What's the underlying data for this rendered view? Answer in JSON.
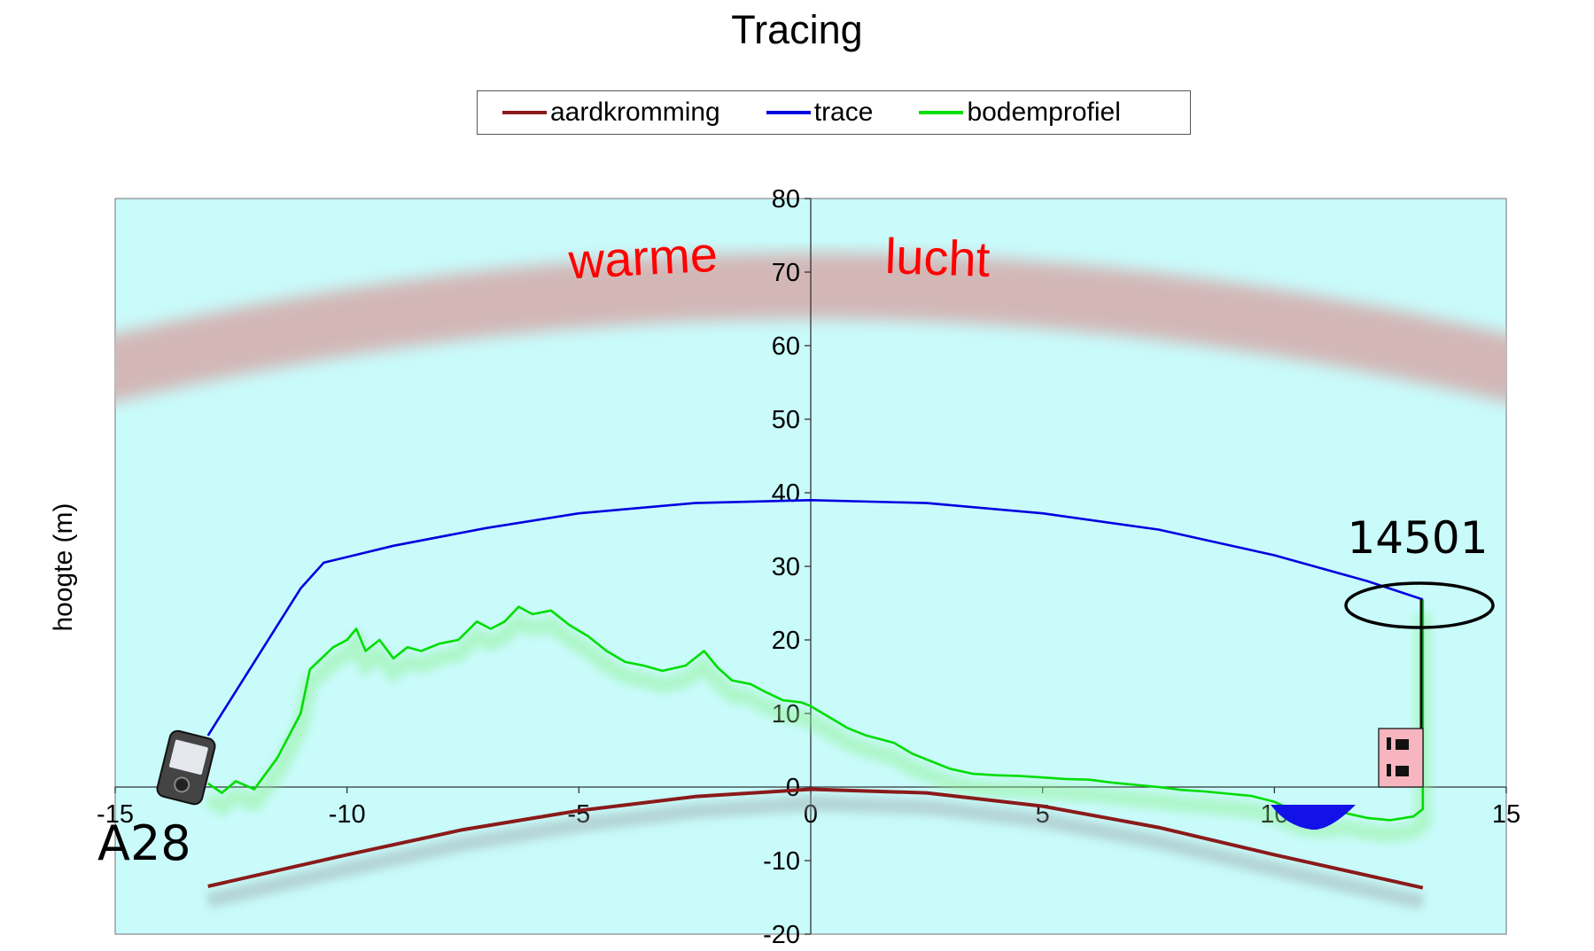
{
  "chart_data": {
    "type": "line",
    "title": "Tracing",
    "xlabel": "",
    "ylabel": "hoogte (m)",
    "xlim": [
      -15,
      15
    ],
    "ylim": [
      -20,
      80
    ],
    "x_ticks": [
      "-15",
      "-10",
      "-5",
      "0",
      "5",
      "10",
      "15"
    ],
    "y_ticks": [
      "80",
      "70",
      "60",
      "50",
      "40",
      "30",
      "20",
      "10",
      "0",
      "-10",
      "-20"
    ],
    "legend_position": "top",
    "grid": false,
    "background_color": "#c9fbfb",
    "series": [
      {
        "name": "aardkromming",
        "color": "#8b1a1a",
        "x": [
          -13,
          -10,
          -7.5,
          -5,
          -2.5,
          0,
          2.5,
          5,
          7.5,
          10,
          13.2
        ],
        "y": [
          -13.5,
          -9.2,
          -5.8,
          -3.2,
          -1.3,
          -0.3,
          -0.8,
          -2.6,
          -5.5,
          -9.2,
          -13.7
        ]
      },
      {
        "name": "trace",
        "color": "#0000e0",
        "x": [
          -13,
          -12,
          -11,
          -10.5,
          -9,
          -7,
          -5,
          -2.5,
          0,
          2.5,
          5,
          7.5,
          10,
          12,
          13.2
        ],
        "y": [
          7,
          17,
          27,
          30.5,
          32.8,
          35.2,
          37.2,
          38.6,
          39.0,
          38.6,
          37.2,
          35.0,
          31.5,
          28.0,
          25.5
        ]
      },
      {
        "name": "bodemprofiel",
        "color": "#00dd00",
        "x": [
          -13,
          -12.7,
          -12.4,
          -12,
          -11.5,
          -11,
          -10.8,
          -10.3,
          -10,
          -9.8,
          -9.6,
          -9.3,
          -9.0,
          -8.7,
          -8.4,
          -8.0,
          -7.6,
          -7.2,
          -6.9,
          -6.6,
          -6.3,
          -6.0,
          -5.6,
          -5.2,
          -4.8,
          -4.4,
          -4.0,
          -3.6,
          -3.2,
          -2.7,
          -2.3,
          -2.0,
          -1.7,
          -1.3,
          -1.0,
          -0.6,
          -0.2,
          0.0,
          0.4,
          0.8,
          1.2,
          1.5,
          1.8,
          2.2,
          2.6,
          3.0,
          3.5,
          4.0,
          4.5,
          5.0,
          5.5,
          6.0,
          6.5,
          7.0,
          7.5,
          8.0,
          8.5,
          9.0,
          9.5,
          10.0,
          10.5,
          11.0,
          11.5,
          12.0,
          12.5,
          13.0,
          13.2,
          13.2
        ],
        "y": [
          0.5,
          -0.8,
          0.8,
          -0.3,
          4,
          10,
          16,
          19,
          20,
          21.5,
          18.5,
          20,
          17.5,
          19,
          18.5,
          19.5,
          20,
          22.5,
          21.5,
          22.5,
          24.5,
          23.5,
          24,
          22,
          20.5,
          18.5,
          17,
          16.5,
          15.8,
          16.5,
          18.5,
          16.2,
          14.5,
          14,
          13,
          11.8,
          11.5,
          11,
          9.5,
          8,
          7,
          6.5,
          6,
          4.5,
          3.5,
          2.5,
          1.8,
          1.6,
          1.5,
          1.3,
          1.1,
          1.0,
          0.6,
          0.3,
          0.0,
          -0.4,
          -0.6,
          -0.9,
          -1.2,
          -2.0,
          -3.5,
          -4.0,
          -3.5,
          -4.2,
          -4.5,
          -4.0,
          -3.0,
          25.5
        ]
      }
    ],
    "annotations": [
      {
        "text": "warme",
        "color": "#ff0000"
      },
      {
        "text": "lucht",
        "color": "#ff0000"
      },
      {
        "text": "14501",
        "color": "#000000"
      },
      {
        "text": "A28",
        "color": "#000000"
      }
    ]
  }
}
